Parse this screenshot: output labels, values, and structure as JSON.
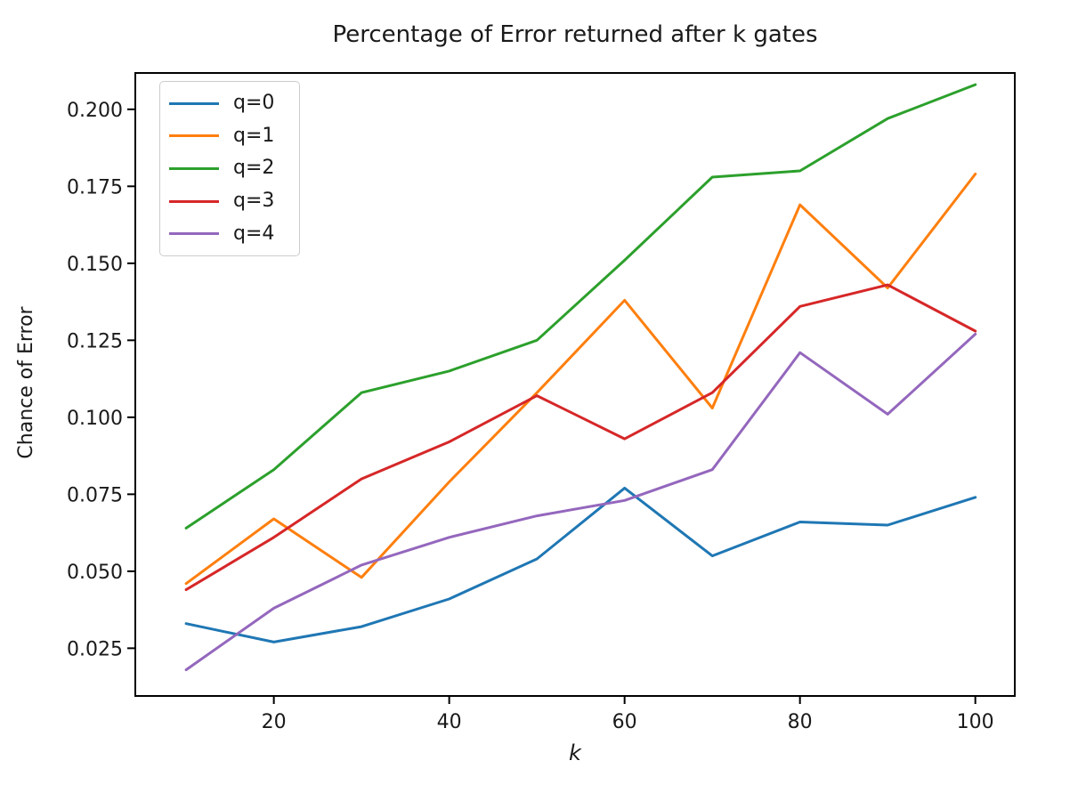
{
  "figure": {
    "title": "Percentage of Error returned after k gates",
    "xlabel": "k",
    "ylabel": "Chance of Error"
  },
  "chart_data": {
    "type": "line",
    "title": "Percentage of Error returned after k gates",
    "xlabel": "k",
    "ylabel": "Chance of Error",
    "x": [
      10,
      20,
      30,
      40,
      50,
      60,
      70,
      80,
      90,
      100
    ],
    "series": [
      {
        "name": "q=0",
        "color": "#1f77b4",
        "values": [
          0.033,
          0.027,
          0.032,
          0.041,
          0.054,
          0.077,
          0.055,
          0.066,
          0.065,
          0.074
        ]
      },
      {
        "name": "q=1",
        "color": "#ff7f0e",
        "values": [
          0.046,
          0.067,
          0.048,
          0.079,
          0.108,
          0.138,
          0.103,
          0.169,
          0.142,
          0.179
        ]
      },
      {
        "name": "q=2",
        "color": "#2ca02c",
        "values": [
          0.064,
          0.083,
          0.108,
          0.115,
          0.125,
          0.151,
          0.178,
          0.18,
          0.197,
          0.208
        ]
      },
      {
        "name": "q=3",
        "color": "#d62728",
        "values": [
          0.044,
          0.061,
          0.08,
          0.092,
          0.107,
          0.093,
          0.108,
          0.136,
          0.143,
          0.128
        ]
      },
      {
        "name": "q=4",
        "color": "#9467bd",
        "values": [
          0.018,
          0.038,
          0.052,
          0.061,
          0.068,
          0.073,
          0.083,
          0.121,
          0.101,
          0.127
        ]
      }
    ],
    "x_ticks": [
      20,
      40,
      60,
      80,
      100
    ],
    "y_ticks": [
      0.025,
      0.05,
      0.075,
      0.1,
      0.125,
      0.15,
      0.175,
      0.2
    ],
    "xlim": [
      4.2,
      104.5
    ],
    "ylim": [
      0.0095,
      0.2118
    ],
    "grid": false,
    "legend_position": "upper left",
    "line_width": 3,
    "axis_color": "#000000",
    "text_color": "#1a1a1a"
  }
}
